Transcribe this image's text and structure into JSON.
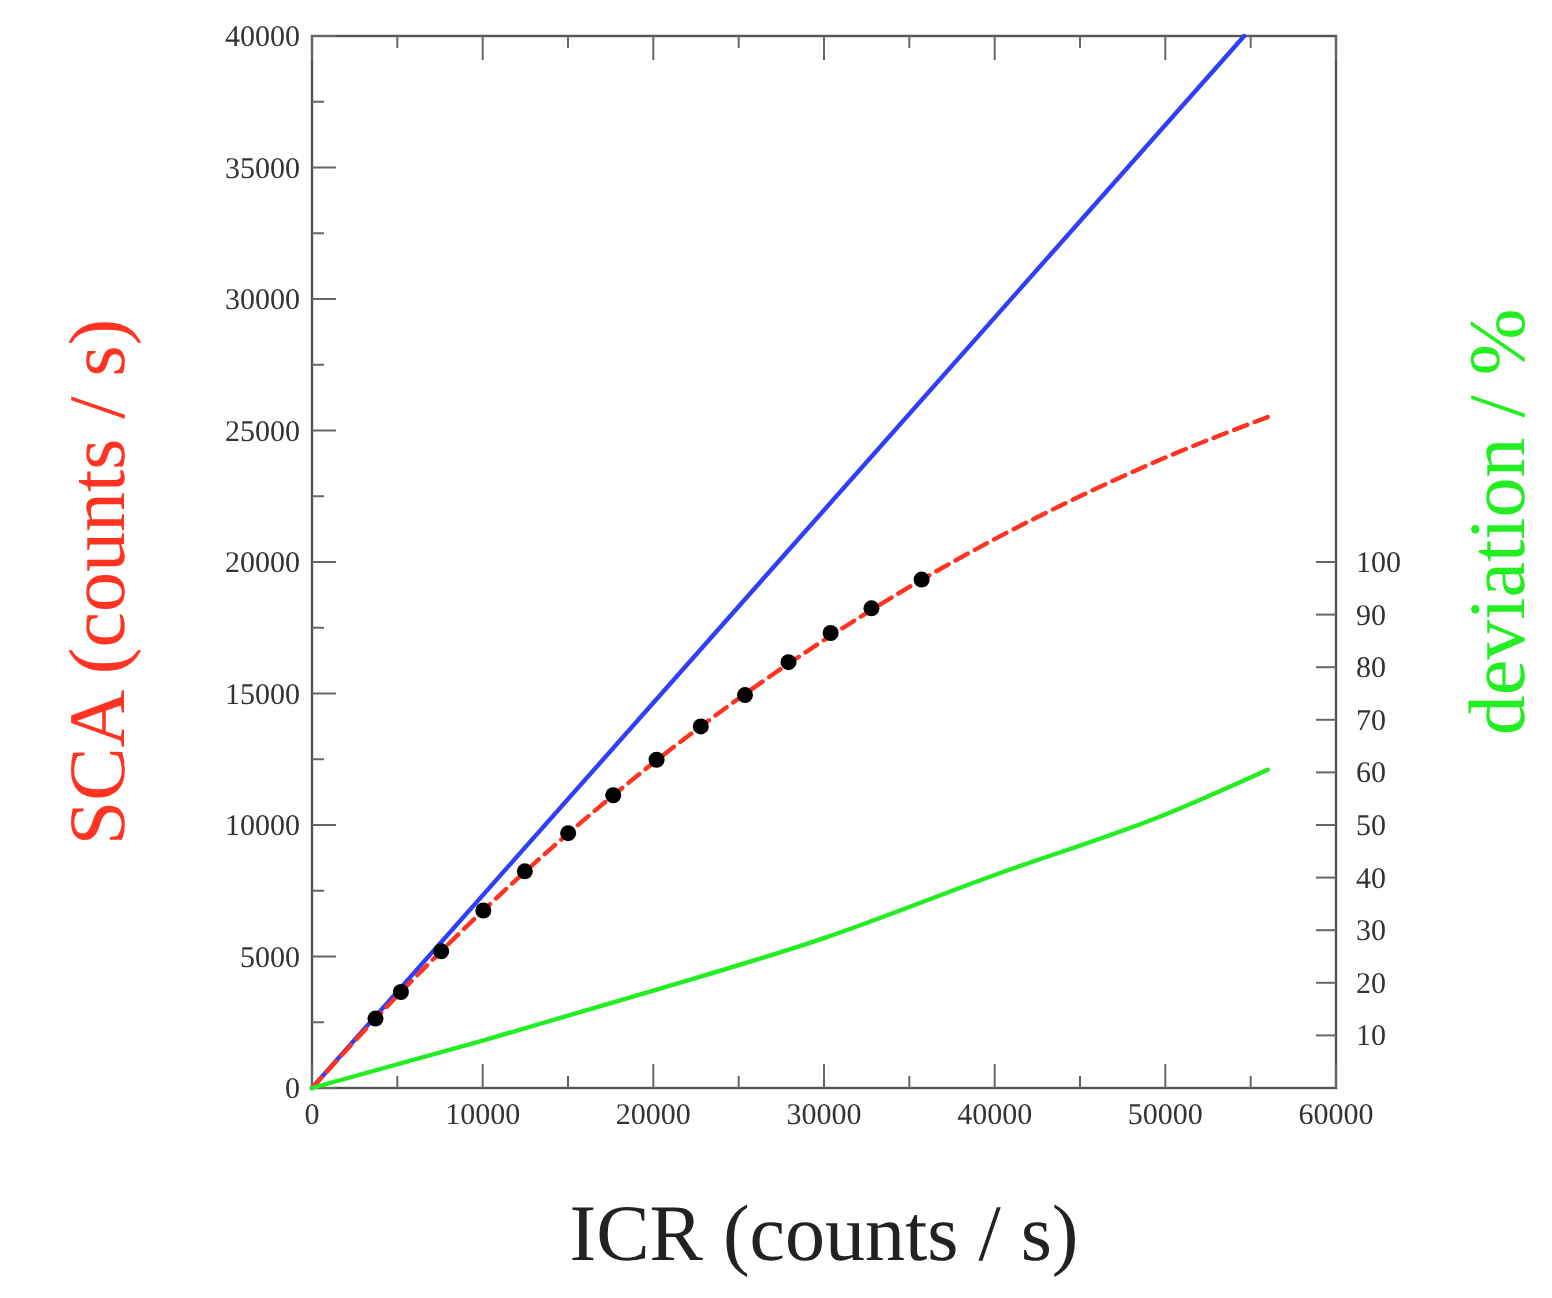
{
  "chart_data": {
    "type": "line",
    "xlabel": "ICR (counts / s)",
    "ylabel": "SCA (counts / s)",
    "y2label": "deviation / %",
    "xlim": [
      0,
      60000
    ],
    "xticks": [
      0,
      {
        "value": 5000,
        "label": null
      },
      10000,
      {
        "value": 15000,
        "label": null
      },
      20000,
      {
        "value": 25000,
        "label": null
      },
      30000,
      {
        "value": 35000,
        "label": null
      },
      40000,
      {
        "value": 45000,
        "label": null
      },
      50000,
      {
        "value": 55000,
        "label": null
      },
      60000
    ],
    "ylim": [
      0,
      40000
    ],
    "yticks": [
      0,
      {
        "value": 2500,
        "label": null
      },
      5000,
      {
        "value": 7500,
        "label": null
      },
      10000,
      {
        "value": 12500,
        "label": null
      },
      15000,
      {
        "value": 17500,
        "label": null
      },
      20000,
      {
        "value": 22500,
        "label": null
      },
      25000,
      {
        "value": 27500,
        "label": null
      },
      30000,
      {
        "value": 32500,
        "label": null
      },
      35000,
      {
        "value": 37500,
        "label": null
      },
      40000
    ],
    "y2lim": [
      0,
      200
    ],
    "y2ticks": [
      10,
      20,
      30,
      40,
      50,
      60,
      70,
      80,
      90,
      100
    ],
    "grid": false,
    "series": [
      {
        "color": "#2f3ff5",
        "line_style": "solid",
        "x": [
          0,
          54620
        ],
        "values": [
          0,
          40000
        ]
      },
      {
        "color": "#ff3322",
        "line_style": "dashed",
        "x": [
          0,
          5000,
          10000,
          15000,
          20000,
          25000,
          30000,
          35000,
          40000,
          45000,
          50000,
          56000
        ],
        "values": [
          0,
          3510,
          6730,
          9670,
          12360,
          14810,
          17030,
          19050,
          20870,
          22500,
          23970,
          25510
        ]
      },
      {
        "type": "scatter",
        "color": "#000000",
        "marker": "circle",
        "x": [
          3720,
          5210,
          7570,
          10040,
          12470,
          15010,
          17650,
          20190,
          22780,
          25370,
          27920,
          30390,
          32780,
          35720
        ],
        "values": [
          2640,
          3650,
          5200,
          6750,
          8240,
          9690,
          11130,
          12480,
          13750,
          14940,
          16190,
          17300,
          18240,
          19330
        ]
      },
      {
        "axis": "y2",
        "color": "#22ee22",
        "line_style": "solid",
        "x": [
          0,
          10000,
          20000,
          30000,
          40000,
          50000,
          56000
        ],
        "values": [
          0,
          9,
          18.5,
          28.5,
          40.5,
          52,
          60.5
        ]
      }
    ]
  }
}
